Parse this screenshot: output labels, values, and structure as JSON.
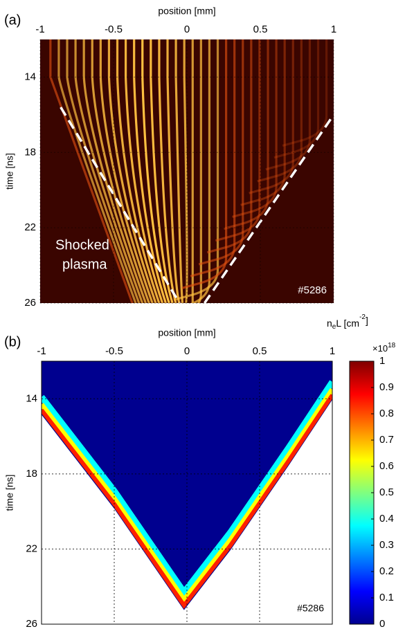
{
  "chart_data": [
    {
      "type": "image",
      "panel_label": "(a)",
      "xlabel": "position [mm]",
      "ylabel": "time [ns]",
      "xlim": [
        -1,
        1
      ],
      "ylim": [
        12,
        26
      ],
      "y_inverted": true,
      "xticks": [
        -1,
        -0.5,
        0,
        0.5,
        1
      ],
      "yticks": [
        14,
        18,
        22,
        26
      ],
      "grid": true,
      "annotations": [
        "Shocked",
        "plasma",
        "#5286"
      ]
    },
    {
      "type": "heatmap",
      "panel_label": "(b)",
      "xlabel": "position [mm]",
      "ylabel": "time [ns]",
      "xlim": [
        -1,
        1
      ],
      "ylim": [
        12,
        26
      ],
      "y_inverted": true,
      "xticks": [
        -1,
        -0.5,
        0,
        0.5,
        1
      ],
      "yticks": [
        14,
        18,
        22,
        26
      ],
      "grid": true,
      "annotations": [
        "#5286"
      ],
      "colorbar": {
        "label": [
          "n",
          "e",
          "L [cm",
          "-2",
          "]"
        ],
        "multiplier": [
          "×10",
          "18"
        ],
        "clim": [
          0,
          1
        ],
        "ticks": [
          0,
          0.1,
          0.2,
          0.3,
          0.4,
          0.5,
          0.6,
          0.7,
          0.8,
          0.9,
          1
        ],
        "colormap": "jet"
      }
    }
  ]
}
